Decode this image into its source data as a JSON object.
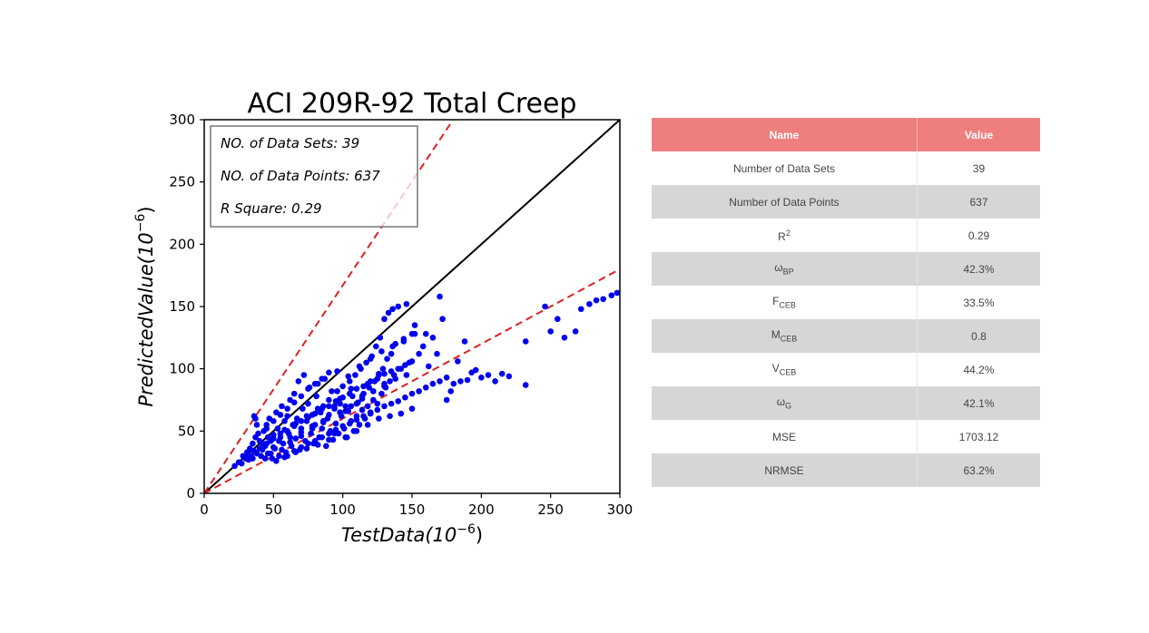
{
  "chart_data": {
    "type": "scatter",
    "title": "ACI 209R-92 Total Creep",
    "xlabel": "TestData(10",
    "xlabel_exp": "−6",
    "ylabel": "PredictedValue(10",
    "ylabel_exp": "−6",
    "xlim": [
      0,
      300
    ],
    "ylim": [
      0,
      300
    ],
    "x_ticks": [
      "0",
      "50",
      "100",
      "150",
      "200",
      "250",
      "300"
    ],
    "y_ticks": [
      "0",
      "50",
      "100",
      "150",
      "200",
      "250",
      "300"
    ],
    "grid": false,
    "reference_lines": [
      {
        "style": "solid",
        "color": "#000000",
        "slope": 1.0
      },
      {
        "style": "dashed",
        "color": "#dd2222",
        "slope": 1.67
      },
      {
        "style": "dashed",
        "color": "#dd2222",
        "slope": 0.6
      }
    ],
    "annotation_box": [
      "NO. of Data Sets: 39",
      "NO. of Data Points: 637",
      "R Square: 0.29"
    ],
    "point_color": "#0000ee",
    "points": [
      [
        22,
        22
      ],
      [
        25,
        25
      ],
      [
        27,
        24
      ],
      [
        28,
        30
      ],
      [
        30,
        28
      ],
      [
        31,
        33
      ],
      [
        32,
        27
      ],
      [
        33,
        36
      ],
      [
        34,
        30
      ],
      [
        35,
        40
      ],
      [
        36,
        34
      ],
      [
        37,
        45
      ],
      [
        37,
        60
      ],
      [
        38,
        55
      ],
      [
        36,
        62
      ],
      [
        39,
        48
      ],
      [
        40,
        42
      ],
      [
        41,
        30
      ],
      [
        42,
        35
      ],
      [
        43,
        50
      ],
      [
        44,
        38
      ],
      [
        45,
        55
      ],
      [
        46,
        32
      ],
      [
        47,
        60
      ],
      [
        48,
        42
      ],
      [
        49,
        28
      ],
      [
        50,
        47
      ],
      [
        51,
        36
      ],
      [
        52,
        65
      ],
      [
        53,
        52
      ],
      [
        54,
        30
      ],
      [
        55,
        45
      ],
      [
        56,
        70
      ],
      [
        57,
        40
      ],
      [
        58,
        58
      ],
      [
        59,
        33
      ],
      [
        60,
        62
      ],
      [
        61,
        48
      ],
      [
        62,
        75
      ],
      [
        63,
        38
      ],
      [
        64,
        55
      ],
      [
        65,
        80
      ],
      [
        66,
        44
      ],
      [
        67,
        60
      ],
      [
        68,
        90
      ],
      [
        69,
        35
      ],
      [
        70,
        52
      ],
      [
        71,
        68
      ],
      [
        72,
        95
      ],
      [
        73,
        42
      ],
      [
        74,
        58
      ],
      [
        75,
        72
      ],
      [
        76,
        85
      ],
      [
        77,
        48
      ],
      [
        78,
        63
      ],
      [
        79,
        40
      ],
      [
        80,
        55
      ],
      [
        81,
        78
      ],
      [
        82,
        88
      ],
      [
        83,
        45
      ],
      [
        84,
        65
      ],
      [
        85,
        52
      ],
      [
        86,
        70
      ],
      [
        87,
        92
      ],
      [
        88,
        38
      ],
      [
        89,
        60
      ],
      [
        90,
        75
      ],
      [
        91,
        50
      ],
      [
        92,
        82
      ],
      [
        93,
        43
      ],
      [
        94,
        68
      ],
      [
        95,
        56
      ],
      [
        96,
        98
      ],
      [
        97,
        48
      ],
      [
        98,
        72
      ],
      [
        99,
        62
      ],
      [
        100,
        86
      ],
      [
        101,
        52
      ],
      [
        102,
        70
      ],
      [
        103,
        45
      ],
      [
        104,
        66
      ],
      [
        105,
        90
      ],
      [
        106,
        58
      ],
      [
        107,
        78
      ],
      [
        108,
        50
      ],
      [
        109,
        95
      ],
      [
        110,
        62
      ],
      [
        111,
        73
      ],
      [
        112,
        55
      ],
      [
        113,
        100
      ],
      [
        114,
        67
      ],
      [
        115,
        80
      ],
      [
        116,
        60
      ],
      [
        117,
        105
      ],
      [
        118,
        70
      ],
      [
        119,
        85
      ],
      [
        120,
        65
      ],
      [
        121,
        110
      ],
      [
        122,
        75
      ],
      [
        123,
        90
      ],
      [
        124,
        118
      ],
      [
        125,
        72
      ],
      [
        126,
        95
      ],
      [
        127,
        125
      ],
      [
        128,
        80
      ],
      [
        129,
        100
      ],
      [
        130,
        140
      ],
      [
        131,
        85
      ],
      [
        132,
        108
      ],
      [
        133,
        145
      ],
      [
        134,
        90
      ],
      [
        135,
        112
      ],
      [
        136,
        148
      ],
      [
        137,
        95
      ],
      [
        138,
        120
      ],
      [
        140,
        150
      ],
      [
        142,
        100
      ],
      [
        144,
        122
      ],
      [
        146,
        152
      ],
      [
        148,
        105
      ],
      [
        150,
        128
      ],
      [
        152,
        135
      ],
      [
        155,
        112
      ],
      [
        158,
        118
      ],
      [
        160,
        128
      ],
      [
        162,
        102
      ],
      [
        165,
        125
      ],
      [
        168,
        112
      ],
      [
        170,
        158
      ],
      [
        172,
        140
      ],
      [
        175,
        75
      ],
      [
        178,
        82
      ],
      [
        180,
        88
      ],
      [
        183,
        106
      ],
      [
        185,
        90
      ],
      [
        188,
        122
      ],
      [
        190,
        91
      ],
      [
        193,
        97
      ],
      [
        196,
        99
      ],
      [
        200,
        93
      ],
      [
        205,
        95
      ],
      [
        210,
        90
      ],
      [
        215,
        96
      ],
      [
        220,
        94
      ],
      [
        232,
        87
      ],
      [
        232,
        122
      ],
      [
        246,
        150
      ],
      [
        250,
        130
      ],
      [
        255,
        140
      ],
      [
        260,
        125
      ],
      [
        268,
        130
      ],
      [
        272,
        148
      ],
      [
        278,
        152
      ],
      [
        283,
        155
      ],
      [
        288,
        156
      ],
      [
        294,
        159
      ],
      [
        298,
        161
      ],
      [
        30,
        30
      ],
      [
        35,
        28
      ],
      [
        40,
        36
      ],
      [
        45,
        40
      ],
      [
        50,
        44
      ],
      [
        55,
        48
      ],
      [
        60,
        50
      ],
      [
        65,
        54
      ],
      [
        70,
        58
      ],
      [
        75,
        61
      ],
      [
        80,
        64
      ],
      [
        85,
        68
      ],
      [
        90,
        70
      ],
      [
        95,
        74
      ],
      [
        100,
        77
      ],
      [
        105,
        80
      ],
      [
        110,
        84
      ],
      [
        115,
        86
      ],
      [
        120,
        90
      ],
      [
        125,
        92
      ],
      [
        130,
        96
      ],
      [
        135,
        98
      ],
      [
        140,
        100
      ],
      [
        145,
        103
      ],
      [
        150,
        106
      ],
      [
        60,
        30
      ],
      [
        65,
        34
      ],
      [
        70,
        37
      ],
      [
        75,
        40
      ],
      [
        80,
        42
      ],
      [
        85,
        45
      ],
      [
        90,
        48
      ],
      [
        95,
        51
      ],
      [
        100,
        54
      ],
      [
        105,
        56
      ],
      [
        110,
        59
      ],
      [
        115,
        62
      ],
      [
        120,
        64
      ],
      [
        125,
        67
      ],
      [
        130,
        70
      ],
      [
        135,
        72
      ],
      [
        140,
        74
      ],
      [
        145,
        77
      ],
      [
        150,
        80
      ],
      [
        155,
        82
      ],
      [
        160,
        85
      ],
      [
        165,
        88
      ],
      [
        170,
        90
      ],
      [
        175,
        93
      ],
      [
        44,
        28
      ],
      [
        48,
        32
      ],
      [
        52,
        26
      ],
      [
        56,
        35
      ],
      [
        58,
        29
      ],
      [
        62,
        41
      ],
      [
        66,
        33
      ],
      [
        70,
        46
      ],
      [
        74,
        36
      ],
      [
        78,
        52
      ],
      [
        82,
        39
      ],
      [
        86,
        57
      ],
      [
        90,
        43
      ],
      [
        94,
        48
      ],
      [
        98,
        65
      ],
      [
        102,
        45
      ],
      [
        106,
        70
      ],
      [
        110,
        50
      ],
      [
        114,
        76
      ],
      [
        118,
        55
      ],
      [
        122,
        82
      ],
      [
        126,
        60
      ],
      [
        130,
        88
      ],
      [
        134,
        62
      ],
      [
        138,
        92
      ],
      [
        142,
        64
      ],
      [
        146,
        95
      ],
      [
        150,
        68
      ],
      [
        45,
        52
      ],
      [
        50,
        58
      ],
      [
        55,
        63
      ],
      [
        60,
        68
      ],
      [
        65,
        73
      ],
      [
        70,
        78
      ],
      [
        75,
        84
      ],
      [
        80,
        88
      ],
      [
        85,
        92
      ],
      [
        90,
        97
      ],
      [
        96,
        82
      ],
      [
        104,
        94
      ],
      [
        112,
        102
      ],
      [
        120,
        108
      ],
      [
        128,
        114
      ],
      [
        136,
        118
      ],
      [
        144,
        124
      ],
      [
        152,
        128
      ],
      [
        38,
        32
      ],
      [
        42,
        40
      ],
      [
        46,
        45
      ],
      [
        50,
        37
      ],
      [
        54,
        42
      ],
      [
        58,
        51
      ],
      [
        62,
        45
      ],
      [
        66,
        56
      ],
      [
        70,
        49
      ],
      [
        74,
        62
      ],
      [
        78,
        54
      ],
      [
        82,
        68
      ],
      [
        86,
        58
      ],
      [
        90,
        63
      ],
      [
        94,
        70
      ],
      [
        98,
        76
      ],
      [
        102,
        66
      ],
      [
        106,
        84
      ],
      [
        110,
        72
      ],
      [
        114,
        78
      ],
      [
        118,
        88
      ],
      [
        122,
        82
      ],
      [
        126,
        96
      ],
      [
        130,
        86
      ]
    ]
  },
  "table": {
    "headers": [
      "Name",
      "Value"
    ],
    "rows": [
      {
        "name": "Number of Data Sets",
        "value": "39"
      },
      {
        "name": "Number of Data Points",
        "value": "637"
      },
      {
        "name": "R",
        "sup": "2",
        "value": "0.29"
      },
      {
        "name": "ω",
        "sub": "BP",
        "value": "42.3%"
      },
      {
        "name": "F",
        "sub": "CEB",
        "value": "33.5%"
      },
      {
        "name": "M",
        "sub": "CEB",
        "value": "0.8"
      },
      {
        "name": "V",
        "sub": "CEB",
        "value": "44.2%"
      },
      {
        "name": "ω",
        "sub": "G",
        "value": "42.1%"
      },
      {
        "name": "MSE",
        "value": "1703.12"
      },
      {
        "name": "NRMSE",
        "value": "63.2%"
      }
    ]
  }
}
